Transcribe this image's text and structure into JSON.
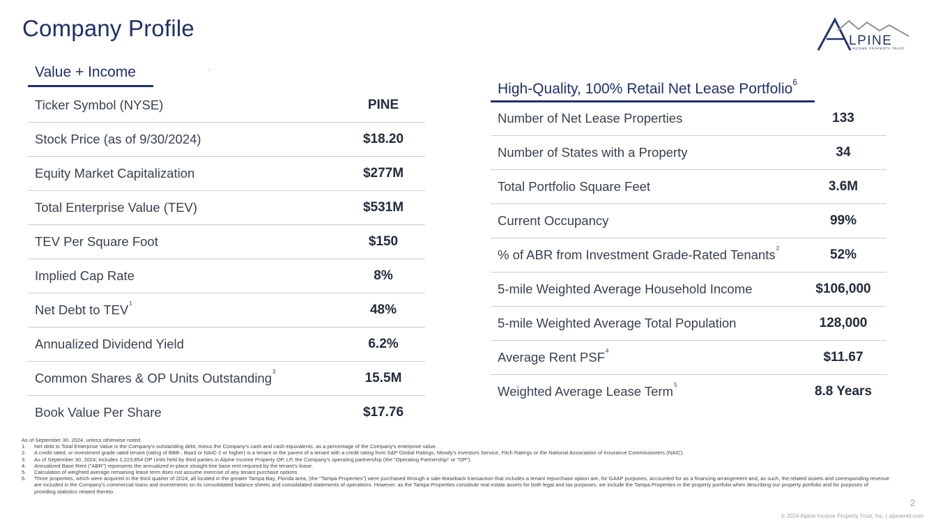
{
  "title": "Company Profile",
  "logo": {
    "word": "LPINE",
    "sub": "INCOME PROPERTY TRUST",
    "letter": "A",
    "icon": "mountain-logo-icon"
  },
  "left": {
    "heading": "Value + Income",
    "rows": [
      {
        "label": "Ticker Symbol (NYSE)",
        "sup": "",
        "value": "PINE"
      },
      {
        "label": "Stock Price (as of 9/30/2024)",
        "sup": "",
        "value": "$18.20"
      },
      {
        "label": "Equity Market Capitalization",
        "sup": "",
        "value": "$277M"
      },
      {
        "label": "Total Enterprise Value (TEV)",
        "sup": "",
        "value": "$531M"
      },
      {
        "label": "TEV Per Square Foot",
        "sup": "",
        "value": "$150"
      },
      {
        "label": "Implied Cap Rate",
        "sup": "",
        "value": "8%"
      },
      {
        "label": "Net Debt to TEV",
        "sup": "1",
        "value": "48%"
      },
      {
        "label": "Annualized Dividend Yield",
        "sup": "",
        "value": "6.2%"
      },
      {
        "label": "Common Shares & OP Units Outstanding",
        "sup": "3",
        "value": "15.5M"
      },
      {
        "label": "Book Value Per Share",
        "sup": "",
        "value": "$17.76"
      }
    ]
  },
  "right": {
    "heading": "High-Quality, 100% Retail Net Lease Portfolio",
    "heading_sup": "6",
    "rows": [
      {
        "label": "Number of Net Lease Properties",
        "sup": "",
        "value": "133"
      },
      {
        "label": "Number of States with a Property",
        "sup": "",
        "value": "34"
      },
      {
        "label": "Total Portfolio Square Feet",
        "sup": "",
        "value": "3.6M"
      },
      {
        "label": "Current Occupancy",
        "sup": "",
        "value": "99%"
      },
      {
        "label": "% of ABR from Investment Grade-Rated Tenants",
        "sup": "2",
        "value": "52%"
      },
      {
        "label": "5-mile Weighted Average Household Income",
        "sup": "",
        "value": "$106,000"
      },
      {
        "label": "5-mile Weighted Average Total Population",
        "sup": "",
        "value": "128,000"
      },
      {
        "label": "Average Rent PSF",
        "sup": "4",
        "value": "$11.67"
      },
      {
        "label": "Weighted Average Lease Term",
        "sup": "5",
        "value": "8.8 Years"
      }
    ]
  },
  "notes": {
    "intro": "As of September 30, 2024, unless otherwise noted.",
    "items": [
      {
        "num": "1.",
        "text": "Net debt to Total Enterprise Value is the Company's outstanding debt, minus the Company's cash and cash equivalents, as a percentage of the Company's enterprise value."
      },
      {
        "num": "2.",
        "text": "A credit rated, or investment grade rated tenant (rating of BBB-, Baa3 or NAIC-2 or higher) is a tenant or the parent of a tenant with a credit rating from S&P Global Ratings, Moody's Investors Service, Fitch Ratings or the National Association of Insurance Commissioners (NAIC)."
      },
      {
        "num": "3.",
        "text": "As of September 30, 2024; includes 1,223,854 OP Units held by third parties in Alpine Income Property OP, LP, the Company's operating partnership (the \"Operating Partnership\" or \"OP\")."
      },
      {
        "num": "4.",
        "text": "Annualized Base Rent (\"ABR\") represents the annualized in-place straight-line base rent required by the tenant's lease."
      },
      {
        "num": "5.",
        "text": "Calculation of weighted average remaining lease term does not assume exercise of any tenant purchase options."
      },
      {
        "num": "6.",
        "text": "Three properties, which were acquired in the third quarter of 2024, all located in the greater Tampa Bay, Florida area, (the \"Tampa Properties\") were purchased through a sale-leaseback transaction that includes a tenant repurchase option are, for GAAP purposes, accounted for as a financing arrangement and, as such, the related assets and corresponding revenue are included in the Company's commercial loans and investments on its consolidated balance sheets and consolidated statements of operations. However, as the Tampa Properties constitute real estate assets for both legal and tax purposes, we include the Tampa Properties in the property portfolio when describing our property portfolio and for purposes of providing statistics related thereto."
      }
    ]
  },
  "page_number": "2",
  "footer": "© 2024 Alpine Income Property Trust, Inc.  |  alpinereit.com",
  "colors": {
    "navy": "#1f2f6b",
    "rule": "#c9cdd3"
  }
}
